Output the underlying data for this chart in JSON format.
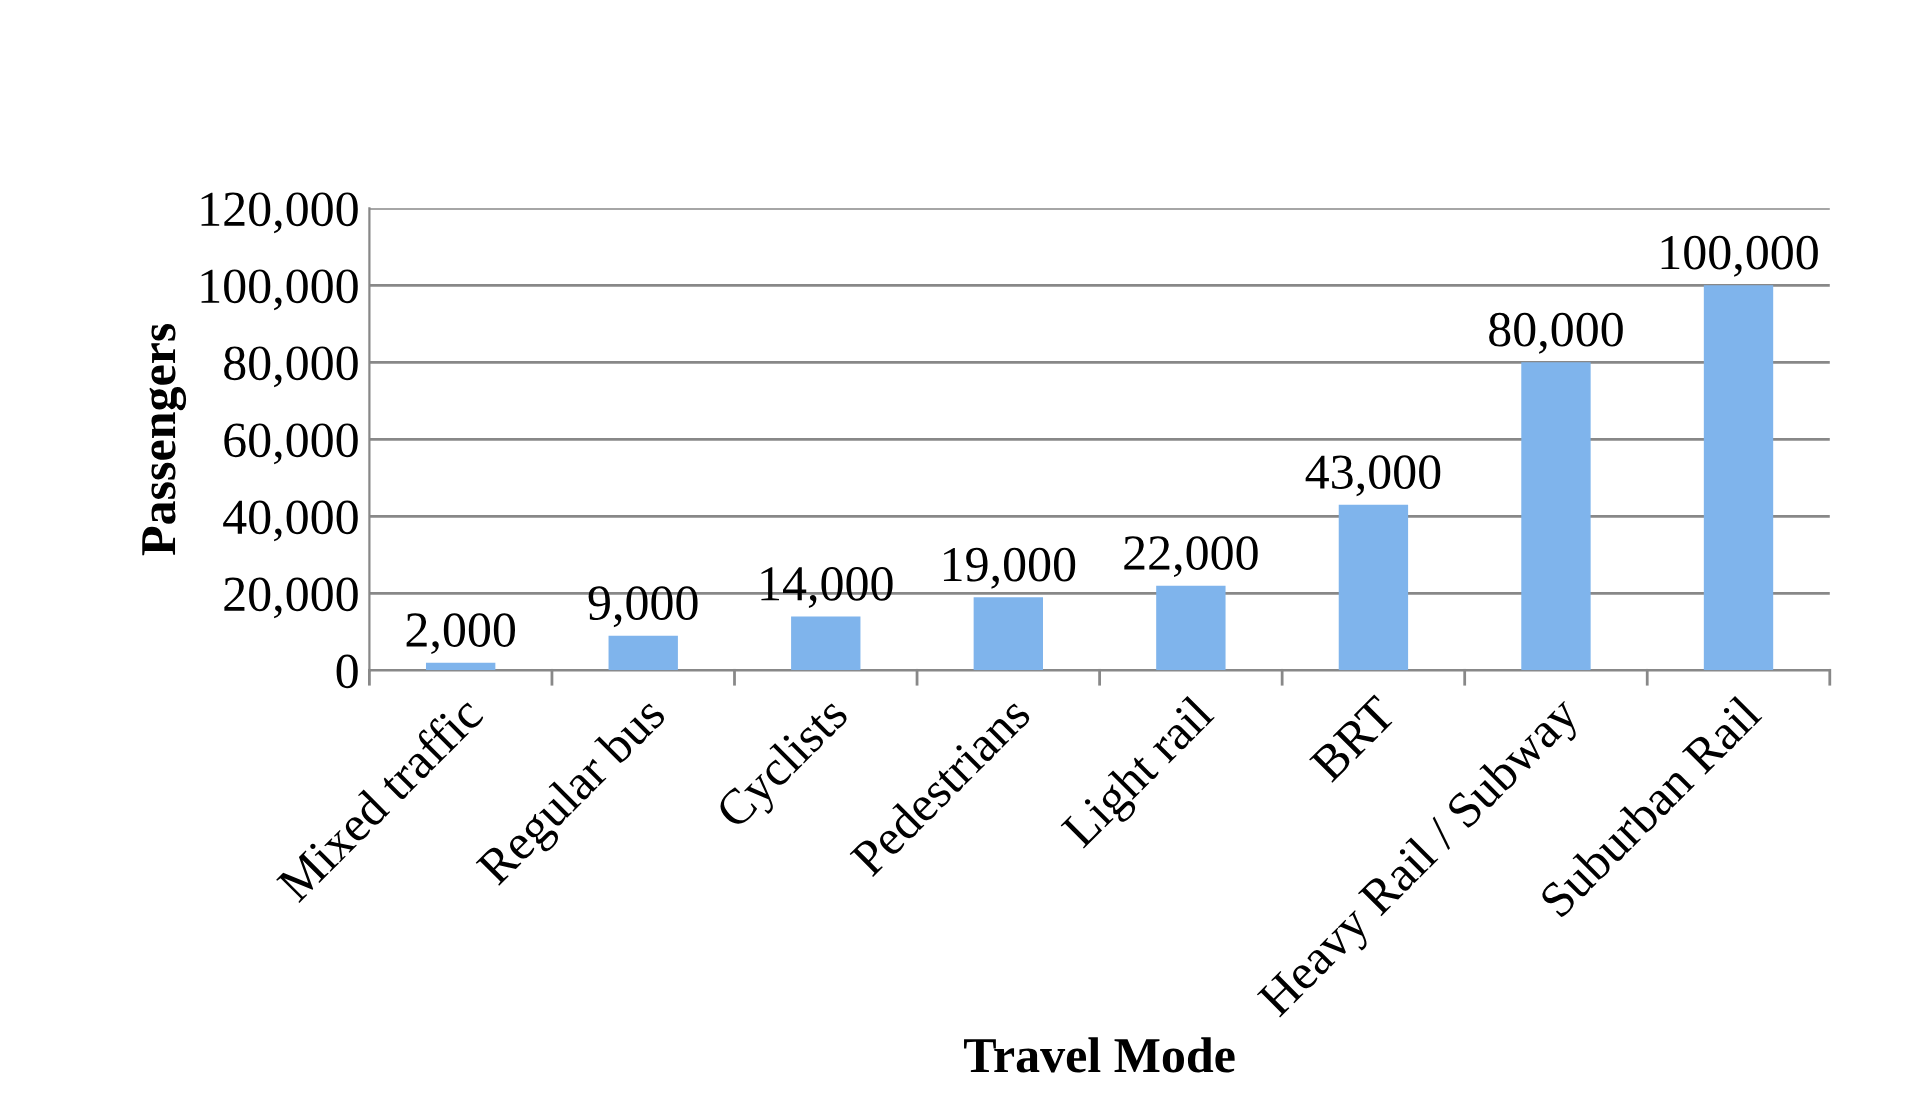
{
  "chart_data": {
    "type": "bar",
    "xlabel": "Travel Mode",
    "ylabel": "Passengers",
    "categories": [
      "Mixed traffic",
      "Regular bus",
      "Cyclists",
      "Pedestrians",
      "Light rail",
      "BRT",
      "Heavy Rail / Subway",
      "Suburban Rail"
    ],
    "values": [
      2000,
      9000,
      14000,
      19000,
      22000,
      43000,
      80000,
      100000
    ],
    "value_labels": [
      "2,000",
      "9,000",
      "14,000",
      "19,000",
      "22,000",
      "43,000",
      "80,000",
      "100,000"
    ],
    "color": "#7fb4ec",
    "ylim": [
      0,
      120000
    ],
    "yticks": [
      0,
      {
        "value": 20000,
        "label": "20,000"
      },
      {
        "value": 40000,
        "label": "40,000"
      },
      {
        "value": 60000,
        "label": "60,000"
      },
      {
        "value": 80000,
        "label": "80,000"
      },
      {
        "value": 100000,
        "label": "100,000"
      },
      {
        "value": 120000,
        "label": "120,000"
      }
    ],
    "grid": "y",
    "legend": false
  }
}
